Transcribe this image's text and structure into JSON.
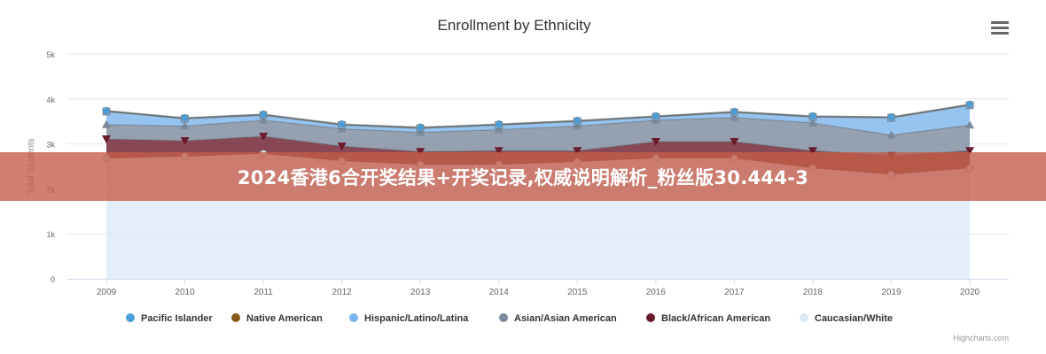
{
  "banner_text": "2024香港6合开奖结果+开奖记录,权威说明解析_粉丝版30.444-3",
  "credits": "Highcharts.com",
  "menu_icon": "hamburger-menu-icon",
  "chart_data": {
    "type": "area",
    "stacked": true,
    "title": "Enrollment by Ethnicity",
    "xlabel": "",
    "ylabel": "Total Students",
    "ylim": [
      0,
      5000
    ],
    "yticks": [
      0,
      1000,
      2000,
      3000,
      4000,
      5000
    ],
    "ytick_labels": [
      "0",
      "1k",
      "2k",
      "3k",
      "4k",
      "5k"
    ],
    "grid": true,
    "legend_position": "bottom",
    "categories": [
      "2009",
      "2010",
      "2011",
      "2012",
      "2013",
      "2014",
      "2015",
      "2016",
      "2017",
      "2018",
      "2019",
      "2020"
    ],
    "series": [
      {
        "name": "Pacific Islander",
        "color": "#4a9fd8",
        "marker": "circle",
        "values": [
          10,
          10,
          10,
          10,
          10,
          10,
          10,
          10,
          10,
          10,
          10,
          10
        ]
      },
      {
        "name": "Native American",
        "color": "#8b5a1a",
        "marker": "diamond",
        "values": [
          10,
          10,
          10,
          10,
          10,
          10,
          10,
          10,
          10,
          10,
          10,
          10
        ]
      },
      {
        "name": "Hispanic/Latino/Latina",
        "color": "#7cb5ec",
        "marker": "square",
        "values": [
          290,
          160,
          110,
          80,
          90,
          100,
          100,
          70,
          110,
          130,
          380,
          440
        ]
      },
      {
        "name": "Asian/Asian American",
        "color": "#7a8a9c",
        "marker": "triangle",
        "values": [
          320,
          330,
          360,
          390,
          430,
          470,
          550,
          480,
          540,
          620,
          460,
          570
        ]
      },
      {
        "name": "Black/African American",
        "color": "#6b1a2a",
        "marker": "triangle-down",
        "values": [
          430,
          350,
          390,
          330,
          290,
          310,
          250,
          370,
          370,
          390,
          420,
          390
        ]
      },
      {
        "name": "Caucasian/White",
        "color": "#dbe8f5",
        "marker": "circle",
        "values": [
          2680,
          2720,
          2780,
          2620,
          2540,
          2540,
          2600,
          2680,
          2680,
          2460,
          2320,
          2460
        ]
      }
    ]
  }
}
